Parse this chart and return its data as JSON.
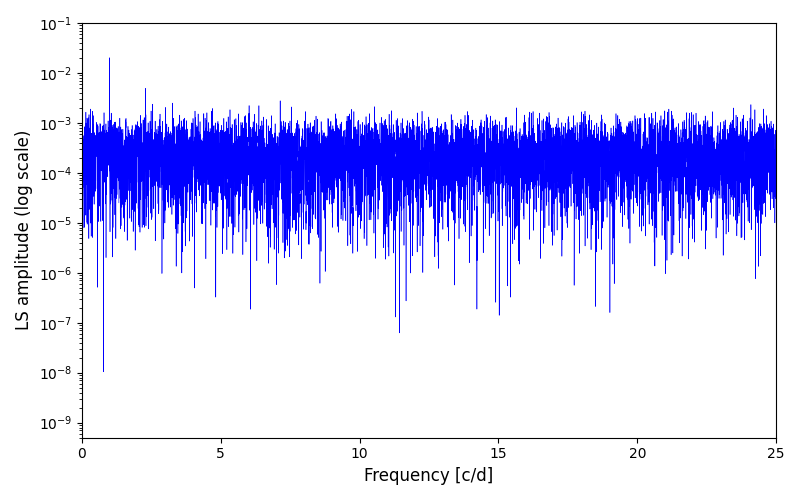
{
  "xlabel": "Frequency [c/d]",
  "ylabel": "LS amplitude (log scale)",
  "xlim": [
    0,
    25
  ],
  "ylim": [
    5e-10,
    0.1
  ],
  "line_color": "blue",
  "background_color": "white",
  "freq_min": 0.001,
  "freq_max": 25.0,
  "n_points": 8000,
  "seed": 7,
  "linewidth": 0.5
}
